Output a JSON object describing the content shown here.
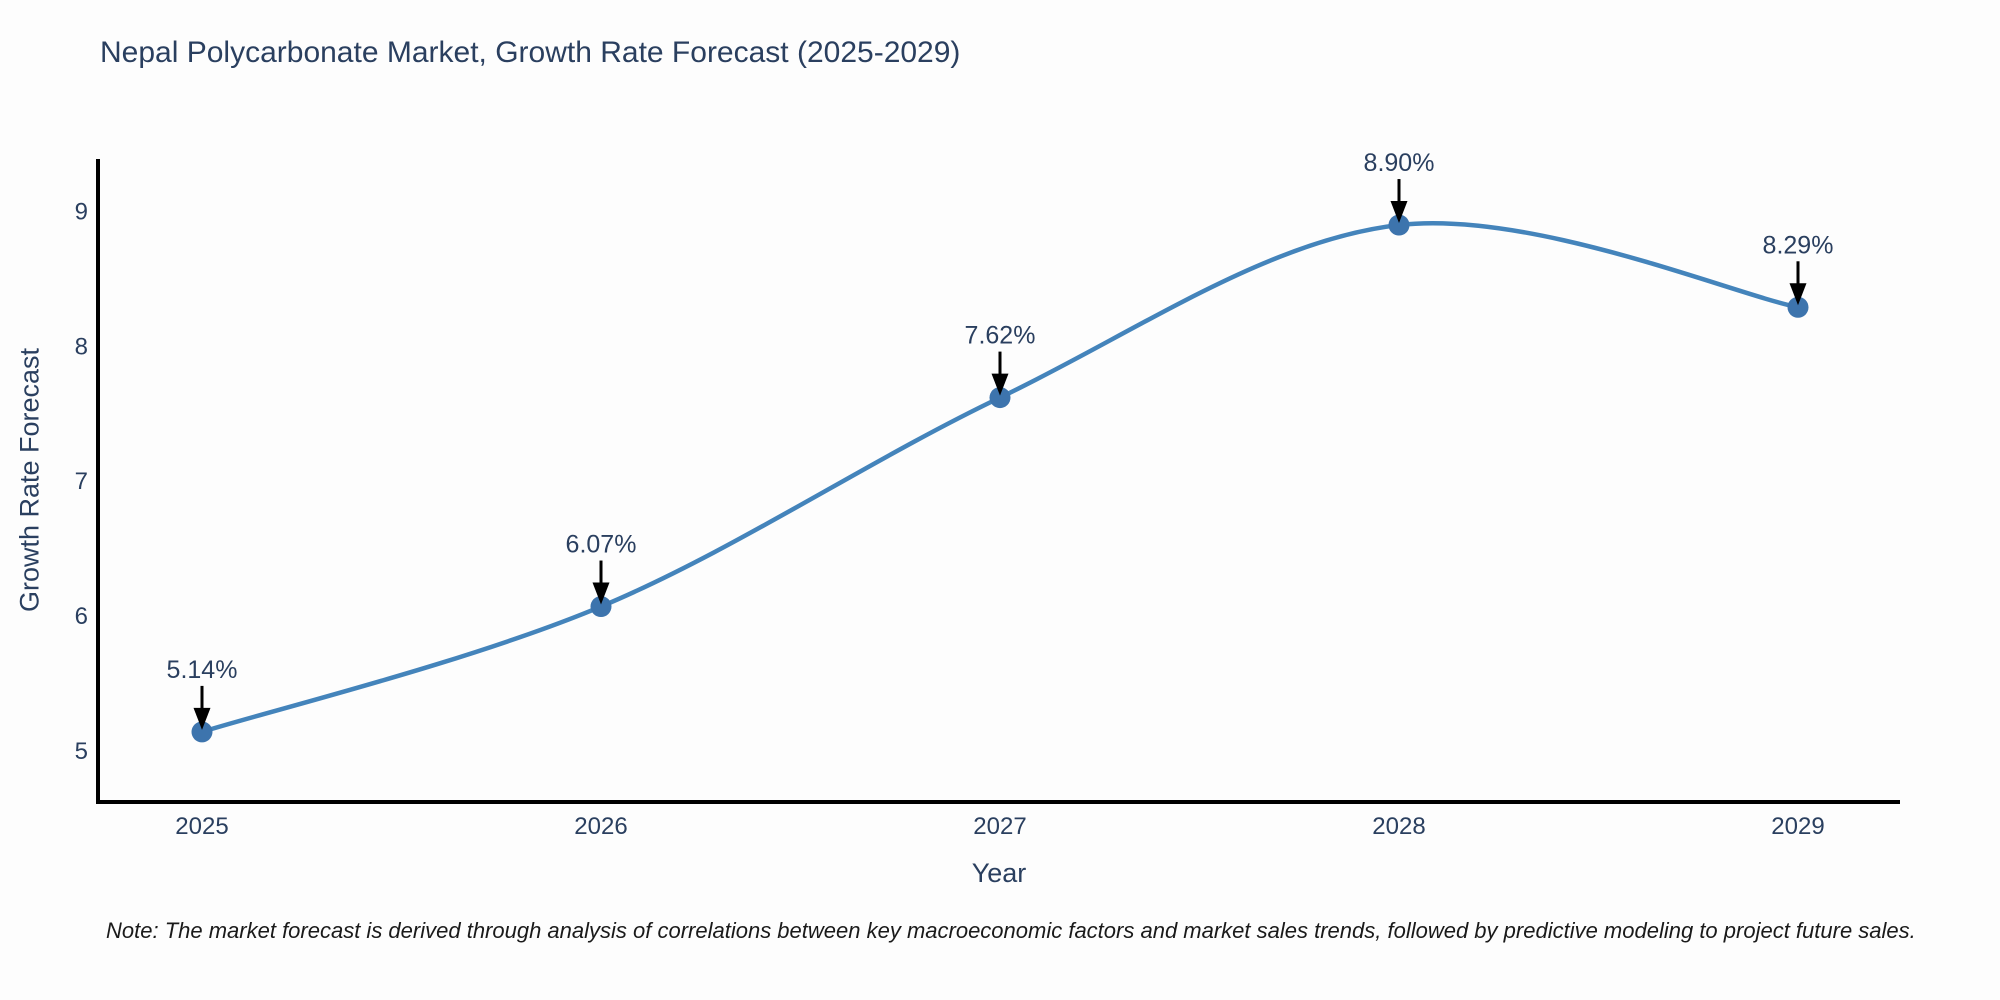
{
  "chart_data": {
    "type": "line",
    "title": "Nepal Polycarbonate Market, Growth Rate Forecast (2025-2029)",
    "xlabel": "Year",
    "ylabel": "Growth Rate Forecast",
    "x": [
      2025,
      2026,
      2027,
      2028,
      2029
    ],
    "series": [
      {
        "name": "Growth Rate Forecast",
        "values": [
          5.14,
          6.07,
          7.62,
          8.9,
          8.29
        ]
      }
    ],
    "point_labels": [
      "5.14%",
      "6.07%",
      "7.62%",
      "8.90%",
      "8.29%"
    ],
    "yticks": [
      5,
      6,
      7,
      8,
      9
    ],
    "ylim": [
      4.62,
      9.39
    ],
    "line_shape": "spline",
    "grid": false,
    "legend_position": "none",
    "note": "Note: The market forecast is derived through analysis of correlations between key macroeconomic factors and market sales trends, followed by predictive modeling to project future sales.",
    "colors": {
      "line": "#4484bb",
      "marker": "#3d74ad",
      "axis": "#000000",
      "tick_text": "#2a3f5f",
      "annotation_text": "#2a3f5f",
      "annotation_arrow": "#000000",
      "title_text": "#2a3f5f",
      "note_text": "#1a1a1a",
      "background": "#fdfdfd"
    }
  }
}
